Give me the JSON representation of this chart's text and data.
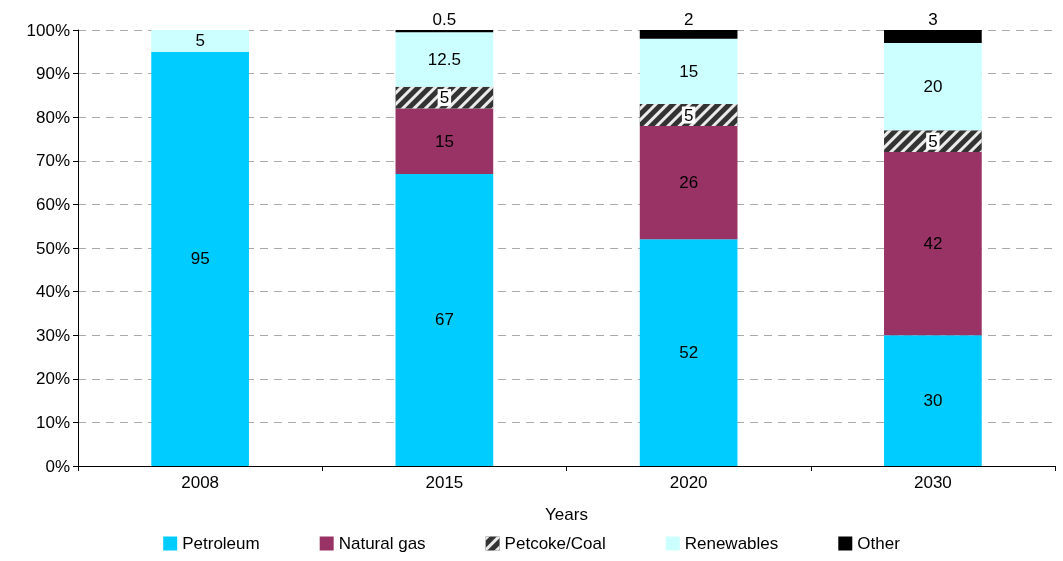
{
  "chart_data": {
    "type": "bar",
    "stacked": true,
    "xlabel": "Years",
    "categories": [
      "2008",
      "2015",
      "2020",
      "2030"
    ],
    "series": [
      {
        "name": "Petroleum",
        "color": "#00ccff",
        "values": [
          95,
          67,
          52,
          30
        ]
      },
      {
        "name": "Natural gas",
        "color": "#993366",
        "values": [
          null,
          15,
          26,
          42
        ]
      },
      {
        "name": "Petcoke/Coal",
        "color": "#333333",
        "values": [
          null,
          5,
          5,
          5
        ]
      },
      {
        "name": "Renewables",
        "color": "#ccffff",
        "values": [
          5,
          12.5,
          15,
          20
        ]
      },
      {
        "name": "Other",
        "color": "#000000",
        "values": [
          null,
          0.5,
          2,
          3
        ]
      }
    ],
    "ylim": [
      0,
      100
    ],
    "yticks": [
      {
        "value": 0,
        "label": "0%"
      },
      {
        "value": 10,
        "label": "10%"
      },
      {
        "value": 20,
        "label": "20%"
      },
      {
        "value": 30,
        "label": "30%"
      },
      {
        "value": 40,
        "label": "40%"
      },
      {
        "value": 50,
        "label": "50%"
      },
      {
        "value": 60,
        "label": "60%"
      },
      {
        "value": 70,
        "label": "70%"
      },
      {
        "value": 80,
        "label": "80%"
      },
      {
        "value": 90,
        "label": "90%"
      },
      {
        "value": 100,
        "label": "100%"
      }
    ],
    "grid": "y",
    "legend": "bottom",
    "data_labels": true
  }
}
